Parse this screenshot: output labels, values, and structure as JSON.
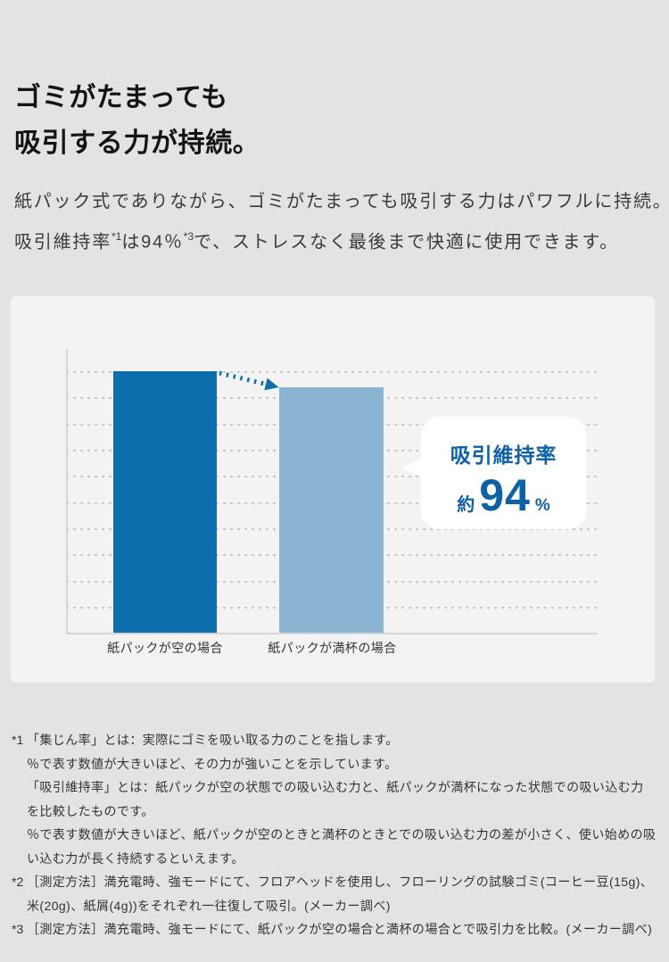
{
  "page": {
    "bg": "#e3e3e3",
    "heading": {
      "line1": "ゴミがたまっても",
      "line2": "吸引する力が持続。"
    },
    "intro": {
      "line1": "紙パック式でありながら、ゴミがたまっても吸引する力はパワフルに持続。",
      "line2": {
        "pre": "吸引維持率",
        "sup1": "*1",
        "mid": "は94％",
        "sup2": "*3",
        "post": "で、ストレスなく最後まで快適に使用できます。"
      }
    }
  },
  "chart_data": {
    "type": "bar",
    "categories": [
      "紙パックが空の場合",
      "紙パックが満杯の場合"
    ],
    "values": [
      100,
      94
    ],
    "value_unit": "%",
    "ylim": [
      0,
      100
    ],
    "gridlines": {
      "count": 10,
      "style": "dotted",
      "interval_percent": 10
    },
    "axis_tick_labels": "none",
    "series_colors": [
      "#0d6ead",
      "#8ab4d2"
    ],
    "card_bg": "#f3f3f3",
    "arrow": {
      "style": "dotted-decline",
      "color": "#0f6eab",
      "from_bar": 0,
      "to_bar": 1
    },
    "callout": {
      "title": "吸引維持率",
      "prefix": "約",
      "value": "94",
      "unit": "%",
      "text_color": "#0e61a5",
      "bubble_bg": "#ffffff"
    }
  },
  "footnotes": [
    {
      "marker": "*1",
      "lines": [
        "「集じん率」とは：実際にゴミを吸い取る力のことを指します。",
        "％で表す数値が大きいほど、その力が強いことを示しています。",
        "「吸引維持率」とは：紙パックが空の状態での吸い込む力と、紙パックが満杯になった状態での吸い込む力を比較したものです。",
        "％で表す数値が大きいほど、紙パックが空のときと満杯のときとでの吸い込む力の差が小さく、使い始めの吸い込む力が長く持続するといえます。"
      ]
    },
    {
      "marker": "*2",
      "lines": [
        "［測定方法］満充電時、強モードにて、フロアヘッドを使用し、フローリングの試験ゴミ(コーヒー豆(15g)、米(20g)、紙屑(4g))をそれぞれ一往復して吸引。(メーカー調べ)"
      ]
    },
    {
      "marker": "*3",
      "lines": [
        "［測定方法］満充電時、強モードにて、紙パックが空の場合と満杯の場合とで吸引力を比較。(メーカー調べ)"
      ]
    }
  ]
}
